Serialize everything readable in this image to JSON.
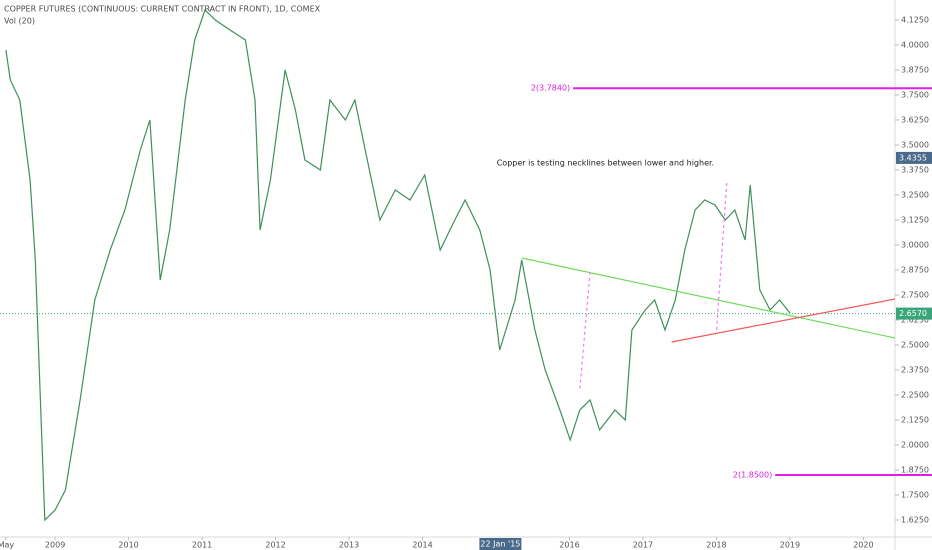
{
  "chart_data": {
    "type": "line",
    "title": "COPPER FUTURES (CONTINUOUS: CURRENT CONTRACT IN FRONT), 1D, COMEX",
    "subtitle": "Vol (20)",
    "color": "#3f8f5c",
    "x": [
      2008.33,
      2008.39,
      2008.52,
      2008.66,
      2008.73,
      2008.8,
      2008.86,
      2009.0,
      2009.14,
      2009.34,
      2009.54,
      2009.75,
      2009.95,
      2010.16,
      2010.29,
      2010.43,
      2010.56,
      2010.77,
      2010.9,
      2011.04,
      2011.18,
      2011.38,
      2011.59,
      2011.72,
      2011.79,
      2011.93,
      2012.13,
      2012.27,
      2012.4,
      2012.61,
      2012.74,
      2012.95,
      2013.08,
      2013.22,
      2013.42,
      2013.63,
      2013.83,
      2014.03,
      2014.24,
      2014.44,
      2014.58,
      2014.78,
      2014.92,
      2015.05,
      2015.26,
      2015.35,
      2015.53,
      2015.67,
      2015.87,
      2016.01,
      2016.14,
      2016.28,
      2016.41,
      2016.62,
      2016.76,
      2016.85,
      2017.03,
      2017.16,
      2017.3,
      2017.44,
      2017.57,
      2017.71,
      2017.84,
      2017.98,
      2018.12,
      2018.25,
      2018.39,
      2018.46,
      2018.59,
      2018.73,
      2018.86,
      2019.0
    ],
    "values": [
      3.975,
      3.825,
      3.725,
      3.325,
      2.925,
      2.225,
      1.625,
      1.675,
      1.775,
      2.225,
      2.725,
      2.975,
      3.175,
      3.475,
      3.625,
      2.825,
      3.075,
      3.725,
      4.025,
      4.175,
      4.125,
      4.075,
      4.025,
      3.725,
      3.075,
      3.325,
      3.875,
      3.675,
      3.425,
      3.375,
      3.725,
      3.625,
      3.725,
      3.475,
      3.125,
      3.275,
      3.225,
      3.35,
      2.975,
      3.125,
      3.225,
      3.075,
      2.875,
      2.475,
      2.725,
      2.925,
      2.575,
      2.375,
      2.175,
      2.025,
      2.175,
      2.225,
      2.075,
      2.175,
      2.125,
      2.575,
      2.675,
      2.725,
      2.575,
      2.725,
      2.975,
      3.175,
      3.225,
      3.2,
      3.125,
      3.175,
      3.025,
      3.3,
      2.775,
      2.675,
      2.725,
      2.66
    ],
    "xlim": [
      2008.25,
      2020.43
    ],
    "ylim": [
      1.54,
      4.225
    ],
    "xticks": [
      {
        "value": 2008.33,
        "label": "May"
      },
      2009,
      2010,
      2011,
      2012,
      2013,
      2014,
      2016,
      2017,
      2018,
      2019,
      2020
    ],
    "yticks": [
      {
        "value": 1.625,
        "label": "1.6250"
      },
      {
        "value": 1.75,
        "label": "1.7500"
      },
      {
        "value": 1.875,
        "label": "1.8750"
      },
      {
        "value": 2.0,
        "label": "2.0000"
      },
      {
        "value": 2.125,
        "label": "2.1250"
      },
      {
        "value": 2.25,
        "label": "2.2500"
      },
      {
        "value": 2.375,
        "label": "2.3750"
      },
      {
        "value": 2.5,
        "label": "2.5000"
      },
      {
        "value": 2.625,
        "label": "2.6250"
      },
      {
        "value": 2.75,
        "label": "2.7500"
      },
      {
        "value": 2.875,
        "label": "2.8750"
      },
      {
        "value": 3.0,
        "label": "3.0000"
      },
      {
        "value": 3.125,
        "label": "3.1250"
      },
      {
        "value": 3.25,
        "label": "3.2500"
      },
      {
        "value": 3.375,
        "label": "3.3750"
      },
      {
        "value": 3.5,
        "label": "3.5000"
      },
      {
        "value": 3.625,
        "label": "3.6250"
      },
      {
        "value": 3.75,
        "label": "3.7500"
      },
      {
        "value": 3.875,
        "label": "3.8750"
      },
      {
        "value": 4.0,
        "label": "4.0000"
      },
      {
        "value": 4.125,
        "label": "4.1250"
      }
    ],
    "crosshair_date": {
      "value": 2015.06,
      "label": "22 Jan '15"
    },
    "crosshair_price": {
      "value": 3.4355,
      "label": "3.4355"
    },
    "last_price": {
      "value": 2.657,
      "label": "2.6570"
    },
    "annotation": {
      "text": "Copper is testing necklines between lower and higher.",
      "x": 2015.01,
      "y": 3.41
    },
    "levels": [
      {
        "label": "2(3.7840)",
        "value": 3.784,
        "x_start": 2016.05,
        "color": "#e020e0"
      },
      {
        "label": "2(1.8500)",
        "value": 1.85,
        "x_start": 2018.8,
        "color": "#e020e0"
      }
    ],
    "trend_lines": [
      {
        "x": [
          2015.35,
          2020.43
        ],
        "y": [
          2.935,
          2.535
        ],
        "color": "#6fdc5a",
        "dashed": false
      },
      {
        "x": [
          2017.39,
          2020.43
        ],
        "y": [
          2.515,
          2.73
        ],
        "color": "#f05a5a",
        "dashed": false
      },
      {
        "x": [
          2016.28,
          2016.14
        ],
        "y": [
          2.865,
          2.275
        ],
        "color": "#f07cf0",
        "dashed": true
      },
      {
        "x": [
          2018.14,
          2018.0
        ],
        "y": [
          3.31,
          2.565
        ],
        "color": "#f07cf0",
        "dashed": true
      }
    ]
  }
}
